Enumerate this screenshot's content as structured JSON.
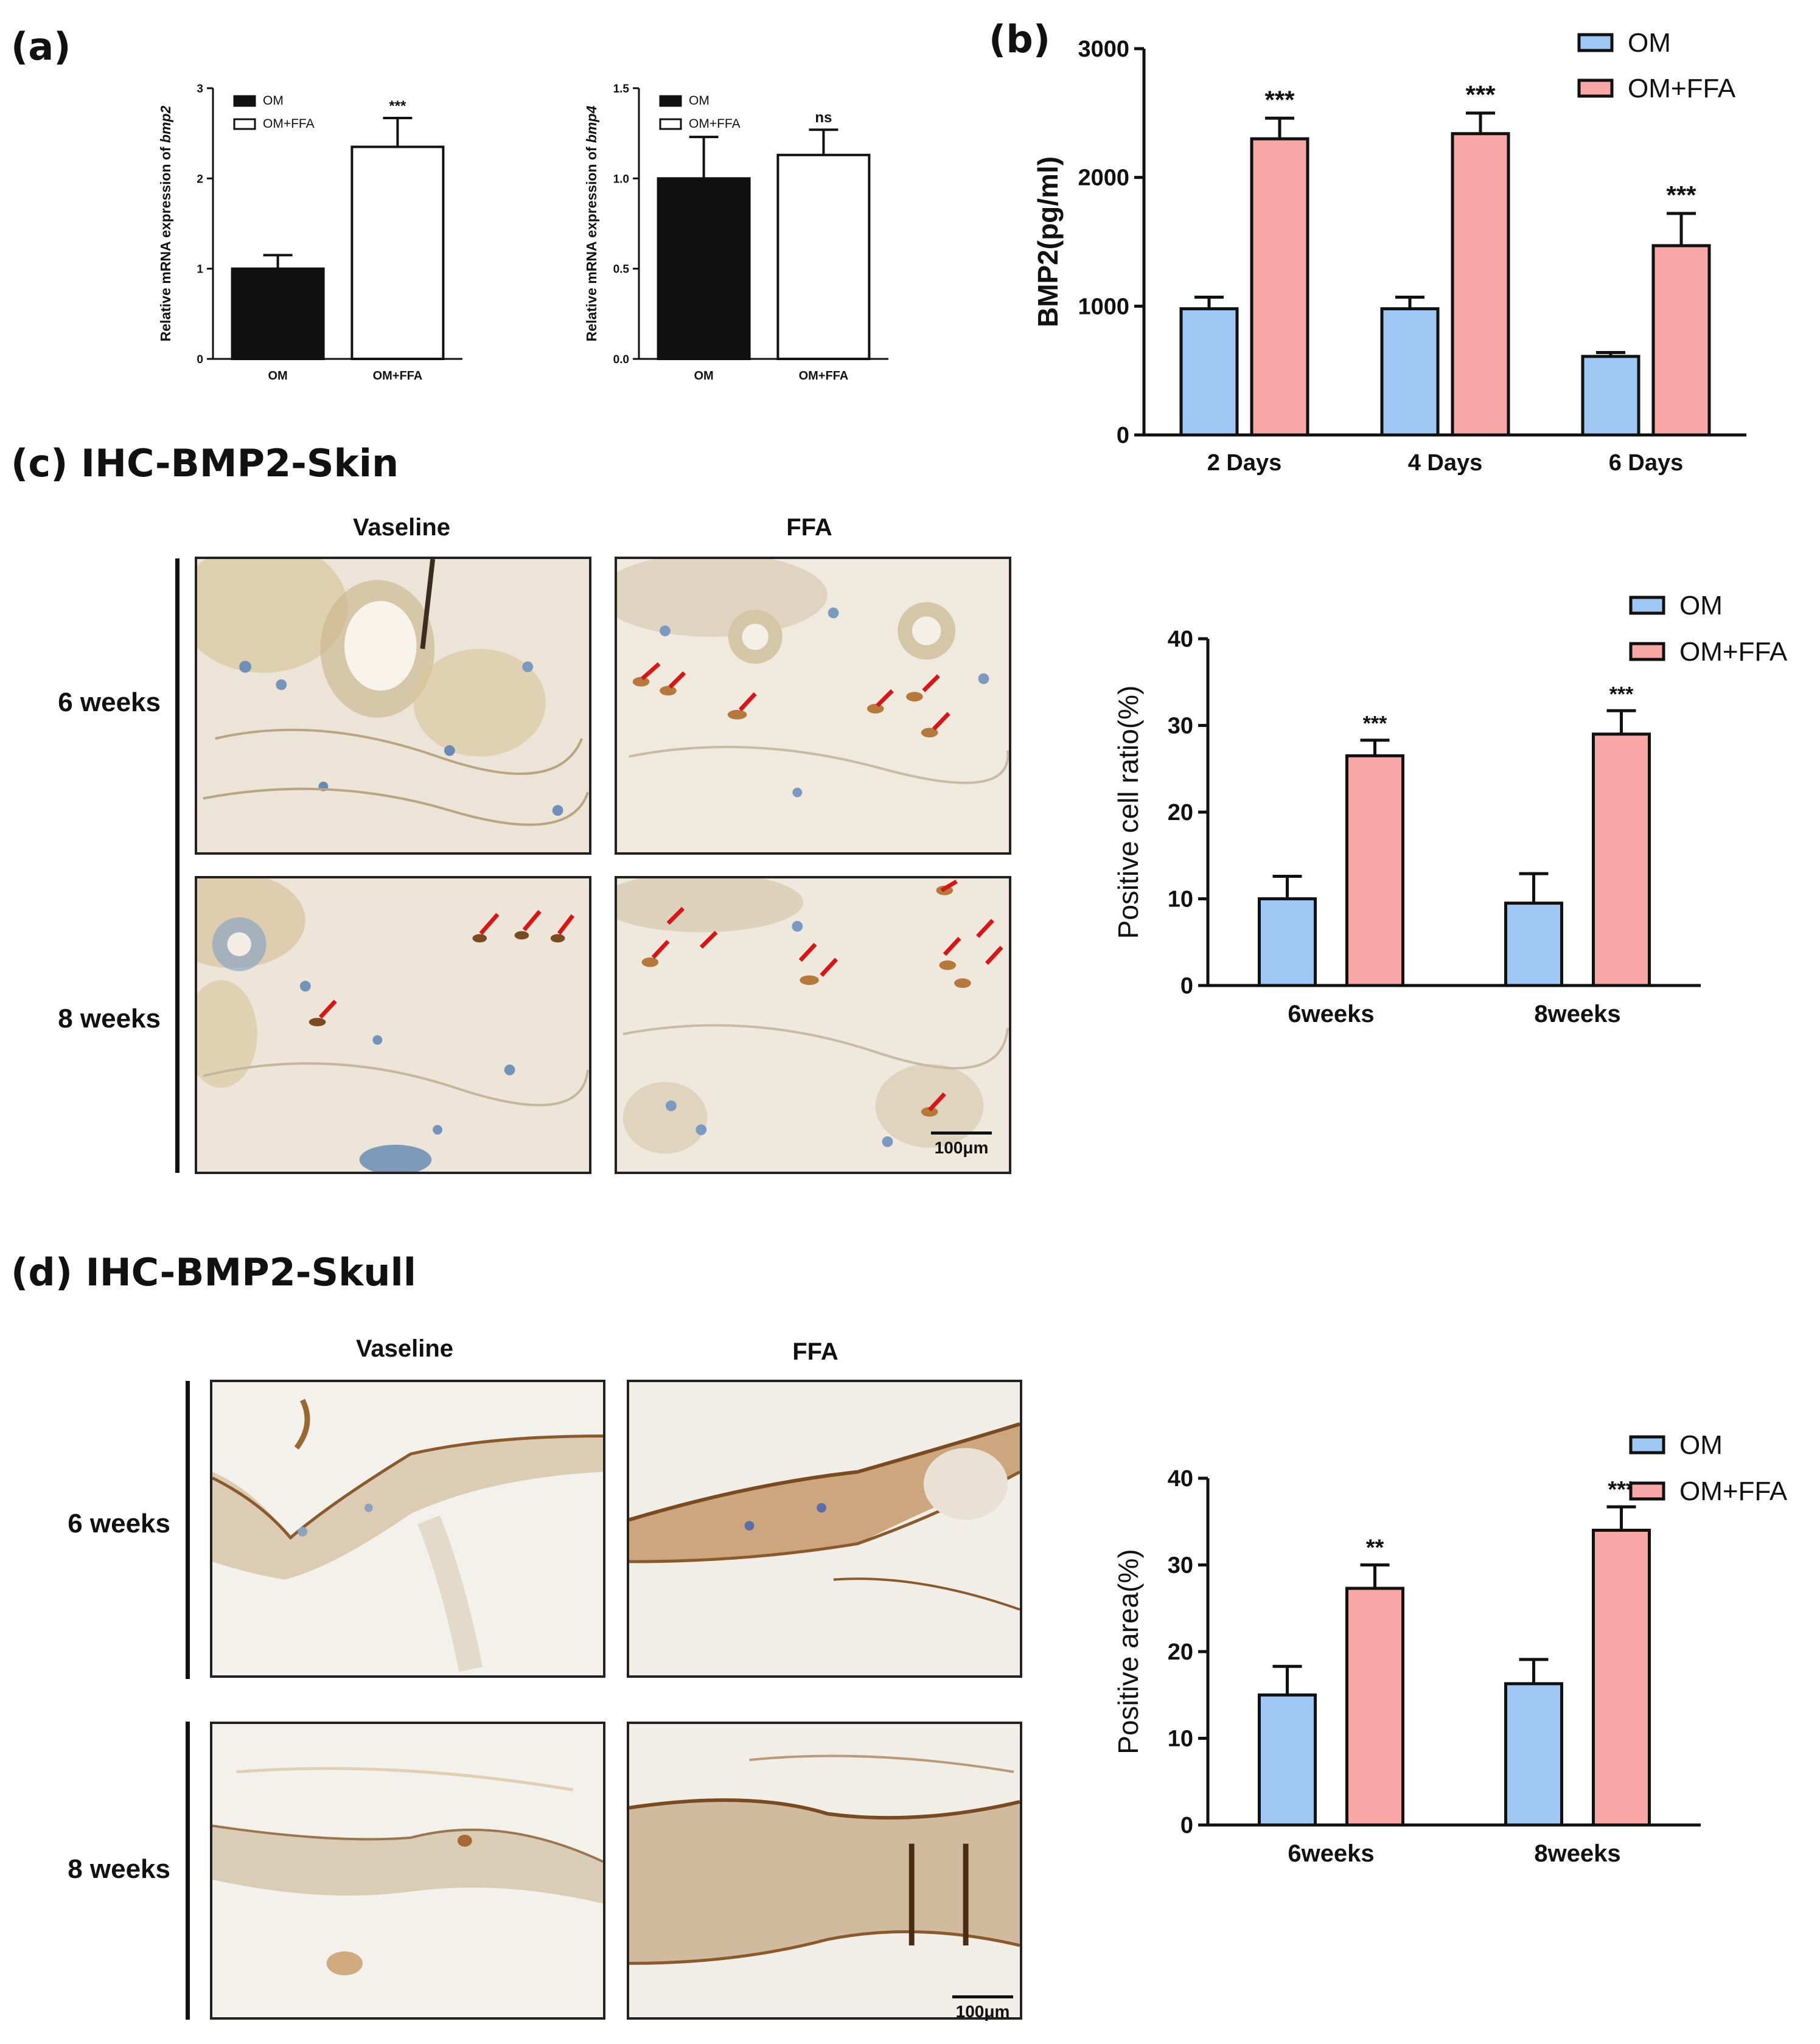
{
  "panels": {
    "a": {
      "label": "(a)"
    },
    "b": {
      "label": "(b)"
    },
    "c": {
      "label": "(c) IHC-BMP2-Skin",
      "col_vaseline": "Vaseline",
      "col_ffa": "FFA",
      "row_6": "6 weeks",
      "row_8": "8 weeks",
      "scale": "100μm"
    },
    "d": {
      "label": "(d)  IHC-BMP2-Skull",
      "col_vaseline": "Vaseline",
      "col_ffa": "FFA",
      "row_6": "6 weeks",
      "row_8": "8 weeks",
      "scale": "100μm"
    }
  },
  "colors": {
    "om_blue": "#9ec7f3",
    "om_ffa_pink": "#f8a6a6",
    "black": "#111111",
    "white": "#ffffff"
  },
  "chart_data": [
    {
      "id": "a1",
      "type": "bar",
      "categories": [
        "OM",
        "OM+FFA"
      ],
      "values": [
        1.0,
        2.35
      ],
      "errors": [
        0.15,
        0.32
      ],
      "ylabel_prefix": "Relative mRNA expression of ",
      "ylabel_gene": "bmp2",
      "ylim": [
        0,
        3
      ],
      "yticks": [
        "0",
        "1",
        "2",
        "3"
      ],
      "legend": [
        "OM",
        "OM+FFA"
      ],
      "annotations": [
        "",
        "***"
      ]
    },
    {
      "id": "a2",
      "type": "bar",
      "categories": [
        "OM",
        "OM+FFA"
      ],
      "values": [
        1.0,
        1.13
      ],
      "errors": [
        0.23,
        0.14
      ],
      "ylabel_prefix": "Relative mRNA expression of ",
      "ylabel_gene": "bmp4",
      "ylim": [
        0,
        1.5
      ],
      "yticks": [
        "0.0",
        "0.5",
        "1.0",
        "1.5"
      ],
      "legend": [
        "OM",
        "OM+FFA"
      ],
      "annotations": [
        "",
        "ns"
      ]
    },
    {
      "id": "b",
      "type": "bar",
      "categories": [
        "2 Days",
        "4 Days",
        "6 Days"
      ],
      "series": [
        {
          "name": "OM",
          "values": [
            980,
            980,
            610
          ],
          "errors": [
            90,
            90,
            30
          ]
        },
        {
          "name": "OM+FFA",
          "values": [
            2300,
            2340,
            1470
          ],
          "errors": [
            160,
            160,
            250
          ]
        }
      ],
      "ylabel": "BMP2(pg/ml)",
      "ylim": [
        0,
        3000
      ],
      "yticks": [
        "0",
        "1000",
        "2000",
        "3000"
      ],
      "annotations": [
        "***",
        "***",
        "***"
      ]
    },
    {
      "id": "c",
      "type": "bar",
      "categories": [
        "6weeks",
        "8weeks"
      ],
      "series": [
        {
          "name": "OM",
          "values": [
            10,
            9.5
          ],
          "errors": [
            2.6,
            3.4
          ]
        },
        {
          "name": "OM+FFA",
          "values": [
            26.5,
            29
          ],
          "errors": [
            1.8,
            2.7
          ]
        }
      ],
      "ylabel": "Positive cell ratio(%)",
      "ylim": [
        0,
        40
      ],
      "yticks": [
        "0",
        "10",
        "20",
        "30",
        "40"
      ],
      "annotations": [
        "***",
        "***"
      ]
    },
    {
      "id": "d",
      "type": "bar",
      "categories": [
        "6weeks",
        "8weeks"
      ],
      "series": [
        {
          "name": "OM",
          "values": [
            15,
            16.3
          ],
          "errors": [
            3.3,
            2.8
          ]
        },
        {
          "name": "OM+FFA",
          "values": [
            27.3,
            34
          ],
          "errors": [
            2.7,
            2.7
          ]
        }
      ],
      "ylabel": "Positive area(%)",
      "ylim": [
        0,
        40
      ],
      "yticks": [
        "0",
        "10",
        "20",
        "30",
        "40"
      ],
      "annotations": [
        "**",
        "***"
      ]
    }
  ]
}
